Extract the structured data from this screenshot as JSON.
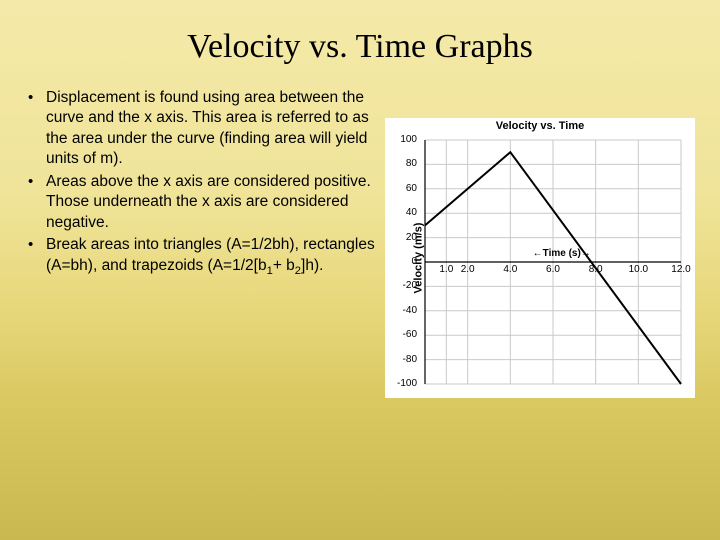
{
  "title": "Velocity vs. Time Graphs",
  "bullets": [
    "Displacement is found using area between the curve and the x axis. This area is referred to as the area under the curve (finding area will yield units of m).",
    "Areas above the x axis are considered positive.  Those underneath the x axis are considered negative.",
    "Break areas into triangles (A=1/2bh), rectangles (A=bh), and trapezoids (A=1/2[b<sub>1</sub>+ b<sub>2</sub>]h)."
  ],
  "chart": {
    "title": "Velocity vs. Time",
    "ylabel": "Velocity (m/s)",
    "xlabel_hint": "Time (s)",
    "ylim": [
      -100,
      100
    ],
    "xlim": [
      0,
      12
    ],
    "yticks": [
      -100,
      -80,
      -60,
      -40,
      -20,
      0,
      20,
      40,
      60,
      80,
      100
    ],
    "xticks": [
      1.0,
      2.0,
      4.0,
      6.0,
      8.0,
      10.0,
      12.0
    ],
    "grid_color": "#c9c9c9",
    "axis_color": "#000000",
    "line_color": "#000000",
    "line_width": 2,
    "background": "#ffffff",
    "data": {
      "x": [
        0,
        4,
        12
      ],
      "y": [
        30,
        90,
        -100
      ]
    }
  }
}
